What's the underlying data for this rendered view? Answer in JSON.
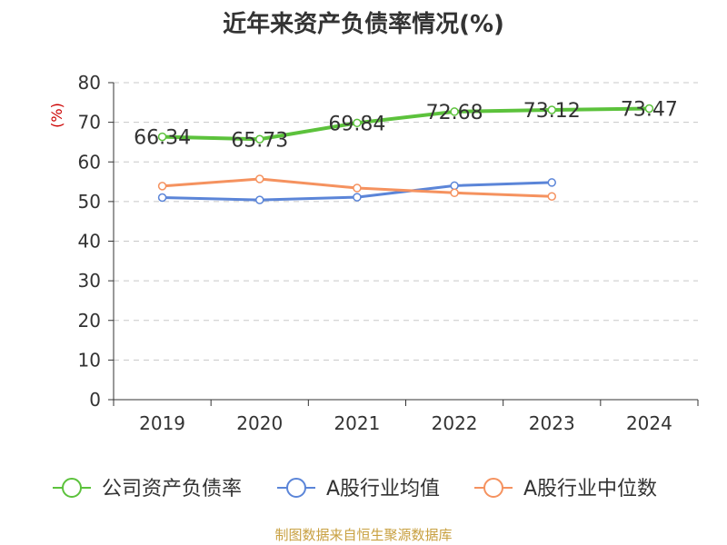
{
  "chart_data": {
    "type": "line",
    "title": "近年来资产负债率情况(%)",
    "ylabel": "(%)",
    "xlabel": "",
    "ylim": [
      0,
      80
    ],
    "y_ticks": [
      0,
      10,
      20,
      30,
      40,
      50,
      60,
      70,
      80
    ],
    "categories": [
      "2019",
      "2020",
      "2021",
      "2022",
      "2023",
      "2024"
    ],
    "grid": true,
    "legend_position": "bottom",
    "series": [
      {
        "name": "公司资产负债率",
        "color": "#5cc23c",
        "show_labels": true,
        "values": [
          66.34,
          65.73,
          69.84,
          72.68,
          73.12,
          73.47
        ],
        "labels": [
          "66.34",
          "65.73",
          "69.84",
          "72.68",
          "73.12",
          "73.47"
        ]
      },
      {
        "name": "A股行业均值",
        "color": "#5b85d8",
        "show_labels": false,
        "values": [
          51.0,
          50.4,
          51.1,
          54.0,
          54.8,
          null
        ]
      },
      {
        "name": "A股行业中位数",
        "color": "#f5925f",
        "show_labels": false,
        "values": [
          53.9,
          55.7,
          53.4,
          52.2,
          51.3,
          null
        ]
      }
    ]
  },
  "source": "制图数据来自恒生聚源数据库"
}
